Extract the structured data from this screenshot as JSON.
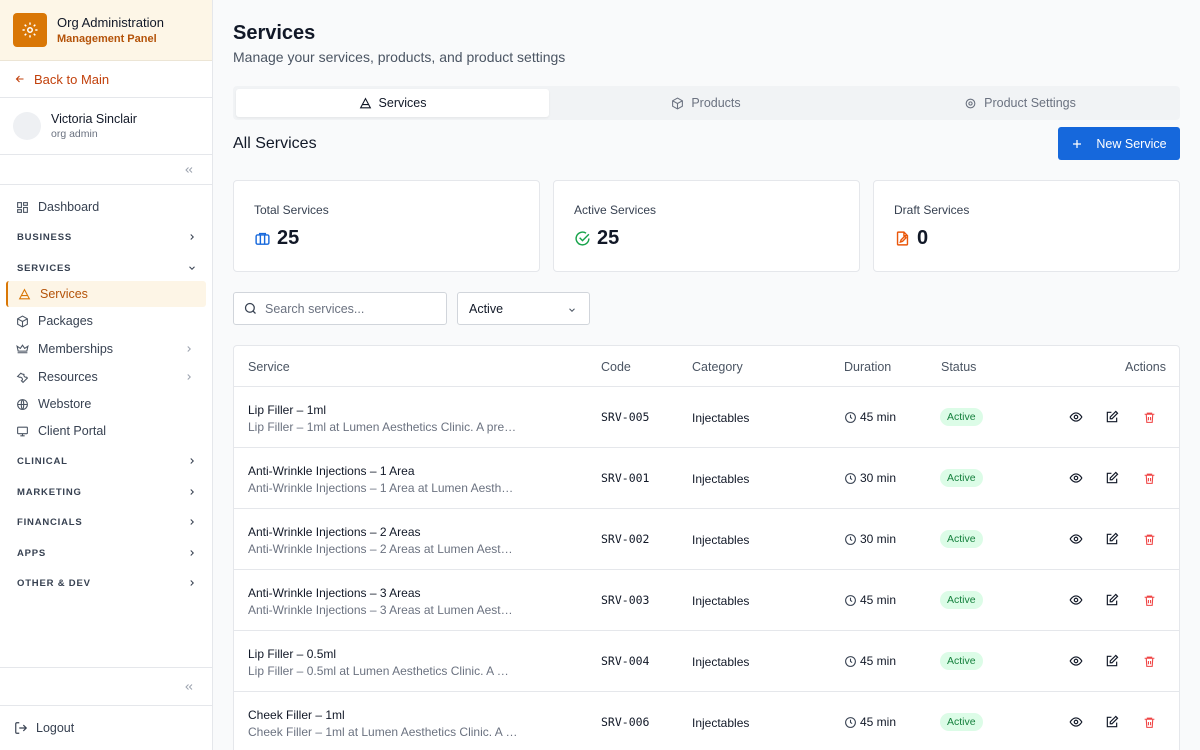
{
  "sidebar": {
    "brand_title": "Org Administration",
    "brand_subtitle": "Management Panel",
    "back_label": "Back to Main",
    "user_name": "Victoria Sinclair",
    "user_role": "org admin",
    "nav": {
      "dashboard": "Dashboard",
      "business": "BUSINESS",
      "services_section": "SERVICES",
      "services": "Services",
      "packages": "Packages",
      "memberships": "Memberships",
      "resources": "Resources",
      "webstore": "Webstore",
      "client_portal": "Client Portal",
      "clinical": "CLINICAL",
      "marketing": "MARKETING",
      "financials": "FINANCIALS",
      "apps": "APPS",
      "other_dev": "OTHER & DEV"
    },
    "logout_label": "Logout"
  },
  "header": {
    "title": "Services",
    "subtitle": "Manage your services, products, and product settings"
  },
  "tabs": {
    "services": "Services",
    "products": "Products",
    "product_settings": "Product Settings"
  },
  "section_title": "All Services",
  "new_button_label": "New Service",
  "stats": {
    "total_label": "Total Services",
    "total_value": "25",
    "active_label": "Active Services",
    "active_value": "25",
    "draft_label": "Draft Services",
    "draft_value": "0"
  },
  "search": {
    "placeholder": "Search services..."
  },
  "filter": {
    "selected": "Active"
  },
  "table": {
    "columns": {
      "service": "Service",
      "code": "Code",
      "category": "Category",
      "duration": "Duration",
      "status": "Status",
      "actions": "Actions"
    },
    "rows": [
      {
        "name": "Lip Filler – 1ml",
        "desc": "Lip Filler – 1ml at Lumen Aesthetics Clinic. A pre…",
        "code": "SRV-005",
        "category": "Injectables",
        "duration": "45 min",
        "status": "Active"
      },
      {
        "name": "Anti-Wrinkle Injections – 1 Area",
        "desc": "Anti-Wrinkle Injections – 1 Area at Lumen Aesth…",
        "code": "SRV-001",
        "category": "Injectables",
        "duration": "30 min",
        "status": "Active"
      },
      {
        "name": "Anti-Wrinkle Injections – 2 Areas",
        "desc": "Anti-Wrinkle Injections – 2 Areas at Lumen Aest…",
        "code": "SRV-002",
        "category": "Injectables",
        "duration": "30 min",
        "status": "Active"
      },
      {
        "name": "Anti-Wrinkle Injections – 3 Areas",
        "desc": "Anti-Wrinkle Injections – 3 Areas at Lumen Aest…",
        "code": "SRV-003",
        "category": "Injectables",
        "duration": "45 min",
        "status": "Active"
      },
      {
        "name": "Lip Filler – 0.5ml",
        "desc": "Lip Filler – 0.5ml at Lumen Aesthetics Clinic. A …",
        "code": "SRV-004",
        "category": "Injectables",
        "duration": "45 min",
        "status": "Active"
      },
      {
        "name": "Cheek Filler – 1ml",
        "desc": "Cheek Filler – 1ml at Lumen Aesthetics Clinic. A …",
        "code": "SRV-006",
        "category": "Injectables",
        "duration": "45 min",
        "status": "Active"
      }
    ]
  },
  "icons": {
    "brand": "gear-icon",
    "back": "arrow-left-icon",
    "collapse": "chevrons-left-icon",
    "dashboard": "grid-icon",
    "services": "cone-icon",
    "packages": "box-icon",
    "memberships": "crown-icon",
    "resources": "wrench-icon",
    "webstore": "globe-icon",
    "client_portal": "monitor-icon",
    "logout": "logout-icon",
    "view": "eye-icon",
    "edit": "edit-icon",
    "delete": "trash-icon",
    "duration": "clock-icon"
  },
  "colors": {
    "accent": "#d97706",
    "primary_button": "#1668dc",
    "active_badge_bg": "#dcfce7",
    "active_badge_text": "#15803d",
    "delete": "#ef4444"
  }
}
